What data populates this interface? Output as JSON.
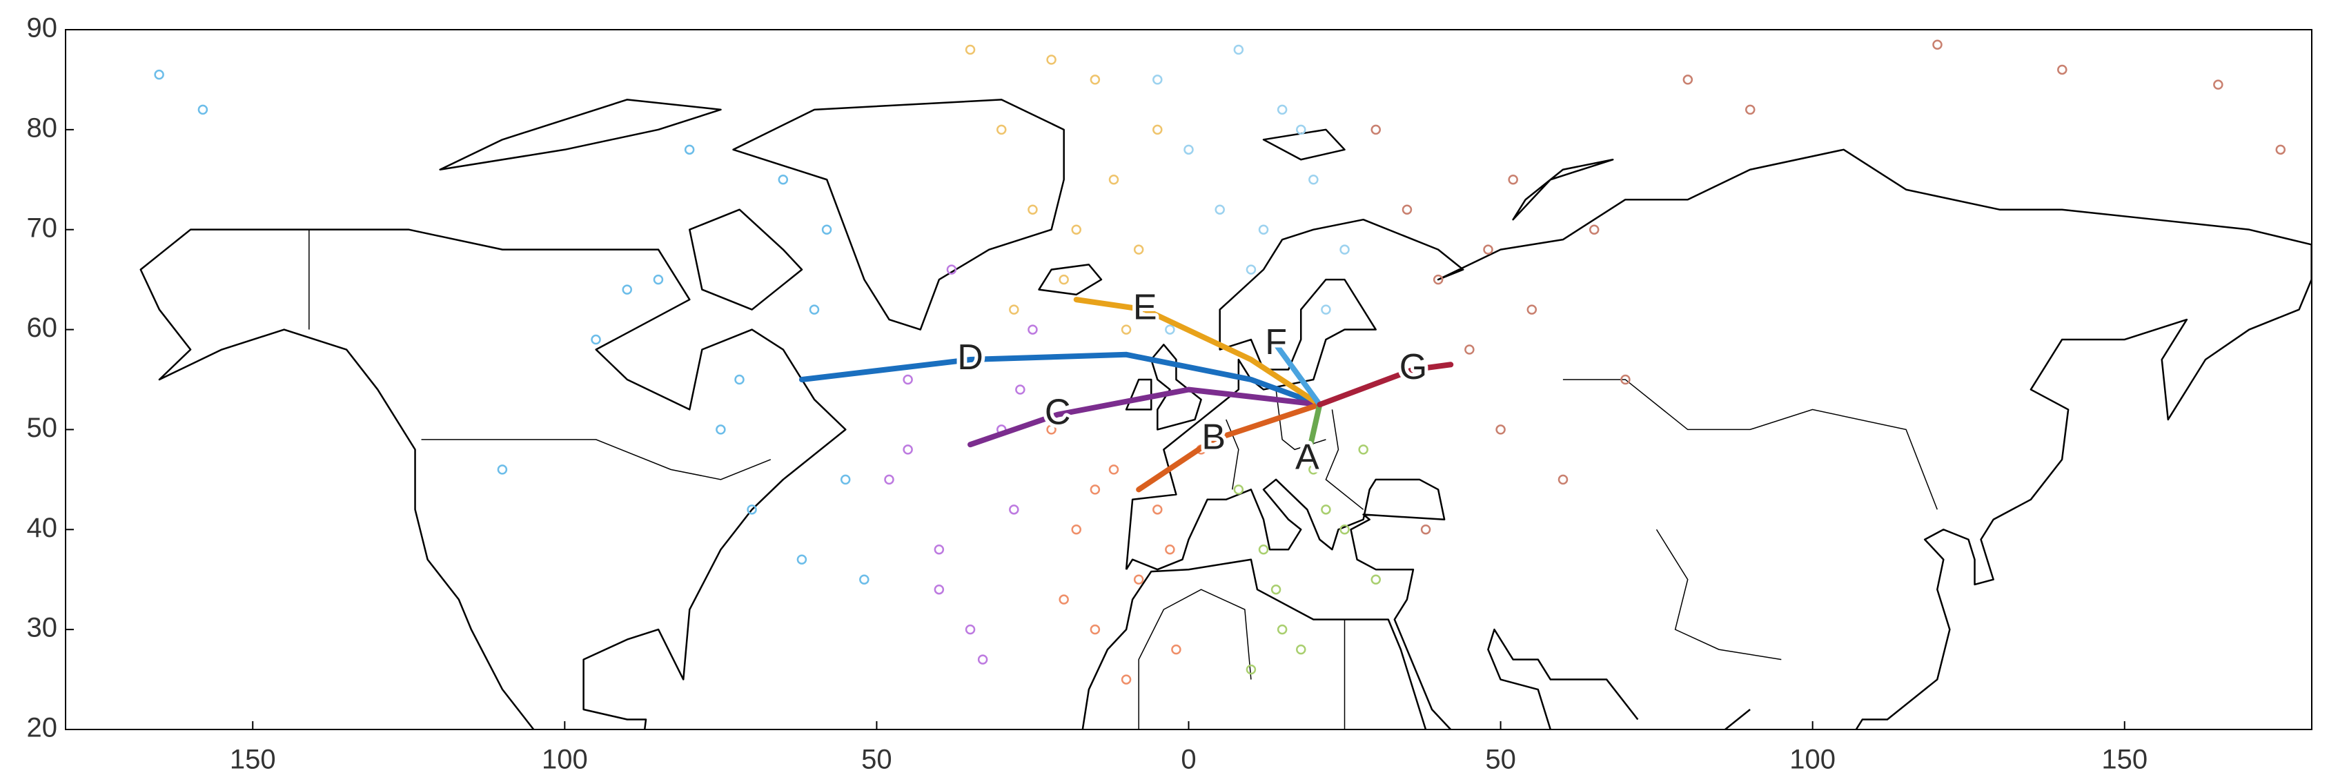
{
  "chart_data": {
    "type": "scatter",
    "xlim": [
      -180,
      180
    ],
    "ylim": [
      20,
      90
    ],
    "xticks": [
      {
        "value": -150,
        "label": "150"
      },
      {
        "value": -100,
        "label": "100"
      },
      {
        "value": -50,
        "label": "50"
      },
      0,
      50,
      100,
      150
    ],
    "yticks": [
      20,
      30,
      40,
      50,
      60,
      70,
      80,
      90
    ],
    "series": [
      {
        "color": "#6cbde9",
        "x": [
          -165,
          -158,
          -110,
          -95,
          -85,
          -75,
          -70,
          -65,
          -60,
          -55,
          -52,
          -80,
          -72,
          -62,
          -58,
          -90
        ],
        "y": [
          85.5,
          82,
          46,
          59,
          65,
          50,
          42,
          75,
          62,
          45,
          35,
          78,
          55,
          37,
          70,
          64
        ]
      },
      {
        "color": "#bd7ae0",
        "x": [
          -48,
          -45,
          -40,
          -38,
          -35,
          -30,
          -28,
          -25,
          -45,
          -33,
          -40,
          -27
        ],
        "y": [
          45,
          55,
          38,
          66,
          30,
          50,
          42,
          60,
          48,
          27,
          34,
          54
        ]
      },
      {
        "color": "#efc46c",
        "x": [
          -35,
          -30,
          -25,
          -20,
          -15,
          -12,
          -8,
          -5,
          -28,
          -18,
          -22,
          -10
        ],
        "y": [
          88,
          80,
          72,
          65,
          85,
          75,
          68,
          80,
          62,
          70,
          87,
          60
        ]
      },
      {
        "color": "#ef8f69",
        "x": [
          -22,
          -18,
          -15,
          -12,
          -8,
          -5,
          -2,
          2,
          -20,
          -10,
          -3,
          -15
        ],
        "y": [
          50,
          40,
          30,
          46,
          35,
          42,
          28,
          48,
          33,
          25,
          38,
          44
        ]
      },
      {
        "color": "#9cd2ef",
        "x": [
          -5,
          0,
          5,
          10,
          15,
          20,
          25,
          -3,
          8,
          18,
          12,
          22
        ],
        "y": [
          85,
          78,
          72,
          66,
          82,
          75,
          68,
          60,
          88,
          80,
          70,
          62
        ]
      },
      {
        "color": "#a9cf6f",
        "x": [
          5,
          8,
          12,
          15,
          20,
          25,
          30,
          10,
          18,
          28,
          14,
          22
        ],
        "y": [
          50,
          44,
          38,
          30,
          46,
          40,
          35,
          26,
          28,
          48,
          34,
          42
        ]
      },
      {
        "color": "#c9806f",
        "x": [
          30,
          35,
          40,
          45,
          50,
          55,
          60,
          65,
          70,
          80,
          90,
          120,
          140,
          165,
          175,
          38,
          52,
          48
        ],
        "y": [
          80,
          72,
          65,
          58,
          50,
          62,
          45,
          70,
          55,
          85,
          82,
          88.5,
          86,
          84.5,
          78,
          40,
          75,
          68
        ]
      }
    ],
    "routes": [
      {
        "name": "D",
        "color": "#1a6fbf",
        "x": [
          -62,
          -35,
          -10,
          10,
          21
        ],
        "y": [
          55,
          57,
          57.5,
          55,
          52.5
        ]
      },
      {
        "name": "C",
        "color": "#7b2d8e",
        "x": [
          -35,
          -21,
          0,
          21
        ],
        "y": [
          48.5,
          51.5,
          54,
          52.5
        ]
      },
      {
        "name": "E",
        "color": "#e8a21a",
        "x": [
          -18,
          -7,
          10,
          21
        ],
        "y": [
          63,
          62,
          57,
          52.5
        ]
      },
      {
        "name": "B",
        "color": "#d95f1e",
        "x": [
          -8,
          4,
          21
        ],
        "y": [
          44,
          49,
          52.5
        ]
      },
      {
        "name": "F",
        "color": "#4aa3df",
        "x": [
          21,
          14
        ],
        "y": [
          52.5,
          58.5
        ]
      },
      {
        "name": "A",
        "color": "#6aa84f",
        "x": [
          21,
          19
        ],
        "y": [
          52.5,
          47
        ]
      },
      {
        "name": "G",
        "color": "#a8203a",
        "x": [
          21,
          36,
          42
        ],
        "y": [
          52.5,
          56,
          56.5
        ]
      }
    ]
  }
}
